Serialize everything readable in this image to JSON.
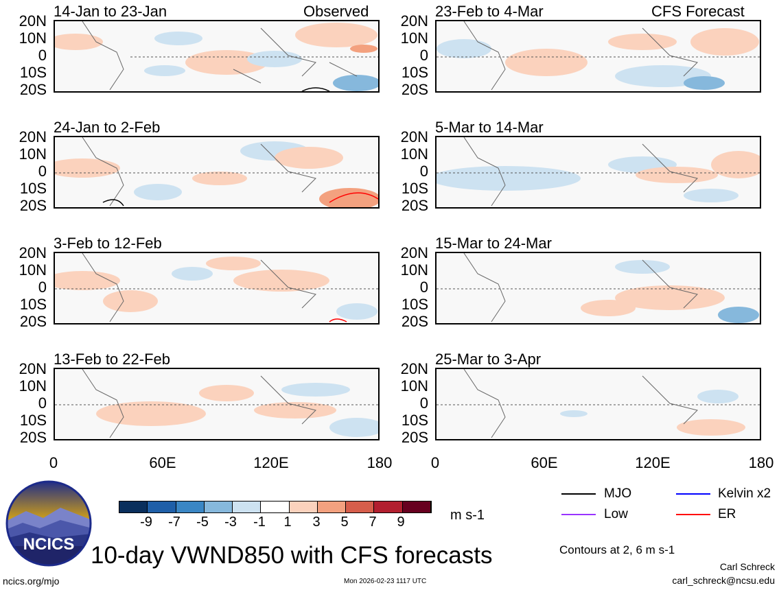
{
  "panels_left": [
    {
      "title": "14-Jan to 23-Jan",
      "tag": "Observed"
    },
    {
      "title": "24-Jan to 2-Feb",
      "tag": ""
    },
    {
      "title": "3-Feb to 12-Feb",
      "tag": ""
    },
    {
      "title": "13-Feb to 22-Feb",
      "tag": ""
    }
  ],
  "panels_right": [
    {
      "title": "23-Feb to 4-Mar",
      "tag": "CFS Forecast"
    },
    {
      "title": "5-Mar to 14-Mar",
      "tag": ""
    },
    {
      "title": "15-Mar to 24-Mar",
      "tag": ""
    },
    {
      "title": "25-Mar to 3-Apr",
      "tag": ""
    }
  ],
  "lat_labels": [
    "20N",
    "10N",
    "0",
    "10S",
    "20S"
  ],
  "lon_labels": [
    "0",
    "60E",
    "120E",
    "180"
  ],
  "colorbar": {
    "colors": [
      "#0a2f5c",
      "#1f5fa8",
      "#3a86c4",
      "#86b8dc",
      "#cde2f1",
      "#ffffff",
      "#fbd2bd",
      "#f3a17f",
      "#d65e4b",
      "#b21f2f",
      "#67001f"
    ],
    "labels": [
      "-9",
      "-7",
      "-5",
      "-3",
      "-1",
      "1",
      "3",
      "5",
      "7",
      "9"
    ],
    "unit": "m s-1"
  },
  "legend": {
    "items": [
      {
        "label": "MJO",
        "color": "#000000"
      },
      {
        "label": "Kelvin x2",
        "color": "#0000ff"
      },
      {
        "label": "Low",
        "color": "#9933ff"
      },
      {
        "label": "ER",
        "color": "#ff0000"
      }
    ],
    "contours_note": "Contours at 2, 6 m s-1"
  },
  "logo_text": "NCICS",
  "main_title": "10-day VWND850 with CFS forecasts",
  "footer": {
    "site": "ncics.org/mjo",
    "timestamp": "Mon 2026-02-23 1117 UTC",
    "author": "Carl Schreck",
    "email": "carl_schreck@ncsu.edu"
  },
  "chart_data": {
    "type": "heatmap",
    "variable": "10-day VWND850 anomaly",
    "units": "m s-1",
    "x_range": [
      0,
      180
    ],
    "y_range": [
      -20,
      20
    ],
    "xlabel": "",
    "ylabel": "",
    "color_levels": [
      -9,
      -7,
      -5,
      -3,
      -1,
      1,
      3,
      5,
      7,
      9
    ],
    "contour_levels": [
      2,
      6
    ],
    "panels": [
      {
        "period": "14-Jan to 23-Jan",
        "source": "Observed"
      },
      {
        "period": "24-Jan to 2-Feb",
        "source": "Observed"
      },
      {
        "period": "3-Feb to 12-Feb",
        "source": "Observed"
      },
      {
        "period": "13-Feb to 22-Feb",
        "source": "Observed"
      },
      {
        "period": "23-Feb to 4-Mar",
        "source": "CFS Forecast"
      },
      {
        "period": "5-Mar to 14-Mar",
        "source": "CFS Forecast"
      },
      {
        "period": "15-Mar to 24-Mar",
        "source": "CFS Forecast"
      },
      {
        "period": "25-Mar to 3-Apr",
        "source": "CFS Forecast"
      }
    ]
  }
}
